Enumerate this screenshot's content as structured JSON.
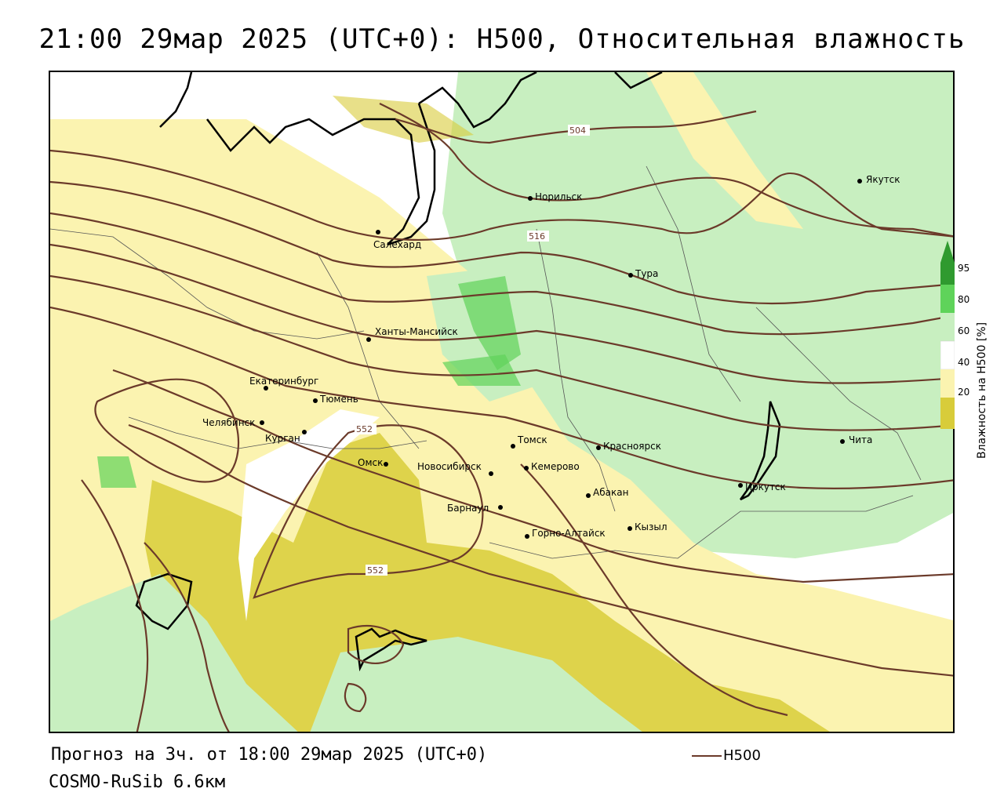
{
  "header": {
    "title": "21:00 29мар 2025 (UTC+0): H500, Относительная влажность"
  },
  "footer": {
    "forecast": "Прогноз на 3ч. от 18:00 29мар 2025 (UTC+0)",
    "model": "COSMO-RuSib 6.6км"
  },
  "legend": {
    "line_label": "H500",
    "line_color": "#6b3a2a"
  },
  "colorbar": {
    "title": "Влажность на H500 [%]",
    "ticks": [
      "95",
      "80",
      "60",
      "40",
      "20"
    ],
    "colors": {
      "very_dry": "#d8cc3a",
      "dry": "#fbf3b0",
      "neutral": "#ffffff",
      "moist": "#c8efc0",
      "wet": "#5fd35a",
      "saturated": "#2f9a2f"
    }
  },
  "contour_labels": [
    "504",
    "516",
    "552",
    "552"
  ],
  "cities": [
    {
      "name": "Якутск"
    },
    {
      "name": "Норильск"
    },
    {
      "name": "Салехард"
    },
    {
      "name": "Тура"
    },
    {
      "name": "Ханты-Мансийск"
    },
    {
      "name": "Екатеринбург"
    },
    {
      "name": "Тюмень"
    },
    {
      "name": "Челябинск"
    },
    {
      "name": "Курган"
    },
    {
      "name": "Омск"
    },
    {
      "name": "Новосибирск"
    },
    {
      "name": "Томск"
    },
    {
      "name": "Кемерово"
    },
    {
      "name": "Красноярск"
    },
    {
      "name": "Абакан"
    },
    {
      "name": "Барнаул"
    },
    {
      "name": "Горно-Алтайск"
    },
    {
      "name": "Кызыл"
    },
    {
      "name": "Иркутск"
    },
    {
      "name": "Чита"
    }
  ]
}
